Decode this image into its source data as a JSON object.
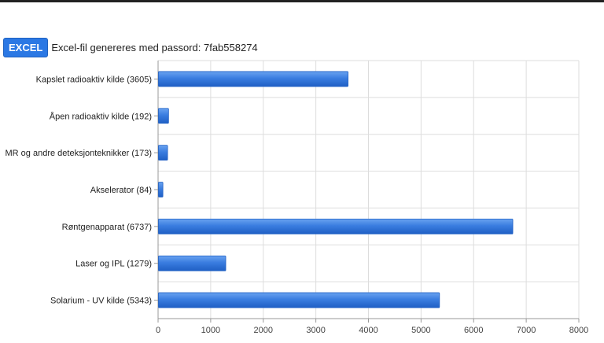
{
  "header": {
    "excel_label": "EXCEL",
    "password_text": "Excel-fil genereres med passord: 7fab558274"
  },
  "colors": {
    "bar": "#3a7de0",
    "bar_highlight": "#6aa3f0",
    "grid": "#dddddd",
    "axis": "#999999"
  },
  "chart_data": {
    "type": "bar",
    "orientation": "horizontal",
    "categories": [
      "Kapslet radioaktiv kilde (3605)",
      "Åpen radioaktiv kilde (192)",
      "MR og andre deteksjonteknikker (173)",
      "Akselerator (84)",
      "Røntgenapparat (6737)",
      "Laser og IPL (1279)",
      "Solarium - UV kilde (5343)"
    ],
    "values": [
      3605,
      192,
      173,
      84,
      6737,
      1279,
      5343
    ],
    "xlim": [
      0,
      8000
    ],
    "xticks": [
      0,
      1000,
      2000,
      3000,
      4000,
      5000,
      6000,
      7000,
      8000
    ],
    "title": "",
    "xlabel": "",
    "ylabel": "",
    "grid": true
  }
}
